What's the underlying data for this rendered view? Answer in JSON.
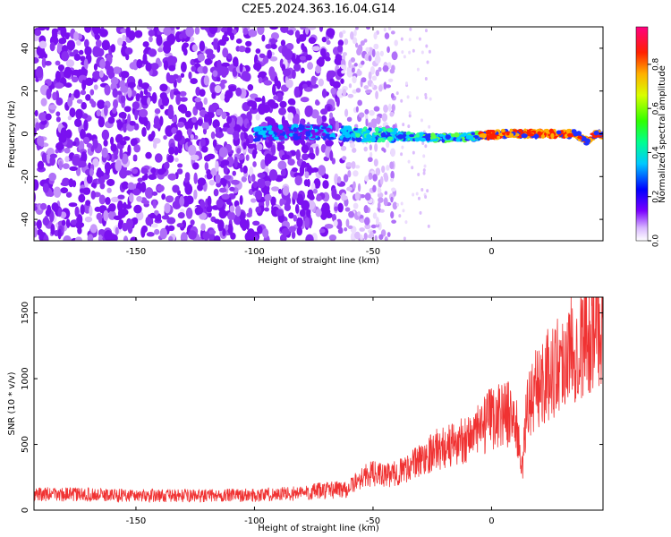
{
  "title": "C2E5.2024.363.16.04.G14",
  "chart_data": [
    {
      "type": "heatmap",
      "xlabel": "Height of straight line (km)",
      "ylabel": "Frequency (Hz)",
      "xlim": [
        -193,
        47
      ],
      "ylim": [
        -50,
        50
      ],
      "xticks": [
        -150,
        -100,
        -50,
        0
      ],
      "yticks": [
        -40,
        -20,
        0,
        20,
        40
      ],
      "ridge": [
        {
          "x": -100,
          "y": 0
        },
        {
          "x": -80,
          "y": 1
        },
        {
          "x": -60,
          "y": 0
        },
        {
          "x": -40,
          "y": -1
        },
        {
          "x": -25,
          "y": -2
        },
        {
          "x": -15,
          "y": -2
        },
        {
          "x": -5,
          "y": -1
        },
        {
          "x": 5,
          "y": 0
        },
        {
          "x": 20,
          "y": 0
        },
        {
          "x": 35,
          "y": 0
        },
        {
          "x": 40,
          "y": -3
        },
        {
          "x": 45,
          "y": 0
        }
      ],
      "colorbar": {
        "label": "Normalized spectral amplitude",
        "range": [
          0,
          0.97
        ],
        "ticks": [
          "0.0",
          "0.2",
          "0.4",
          "0.6",
          "0.8"
        ]
      }
    },
    {
      "type": "line",
      "xlabel": "Height of straight line (km)",
      "ylabel": "SNR (10 * v/v)",
      "xlim": [
        -193,
        47
      ],
      "ylim": [
        0,
        1620
      ],
      "xticks": [
        -150,
        -100,
        -50,
        0
      ],
      "yticks": [
        0,
        500,
        1000,
        1500
      ],
      "series": [
        {
          "color": "#f03232",
          "x": [
            -193,
            -180,
            -160,
            -140,
            -120,
            -100,
            -80,
            -70,
            -60,
            -55,
            -50,
            -45,
            -40,
            -35,
            -30,
            -25,
            -20,
            -15,
            -10,
            -5,
            0,
            5,
            10,
            13,
            15,
            20,
            25,
            30,
            35,
            40,
            45,
            47
          ],
          "y": [
            120,
            120,
            115,
            110,
            110,
            115,
            130,
            150,
            170,
            250,
            280,
            260,
            280,
            330,
            380,
            450,
            480,
            500,
            560,
            600,
            700,
            750,
            700,
            300,
            800,
            950,
            1050,
            1150,
            1250,
            1330,
            1400,
            1450
          ]
        }
      ]
    }
  ]
}
